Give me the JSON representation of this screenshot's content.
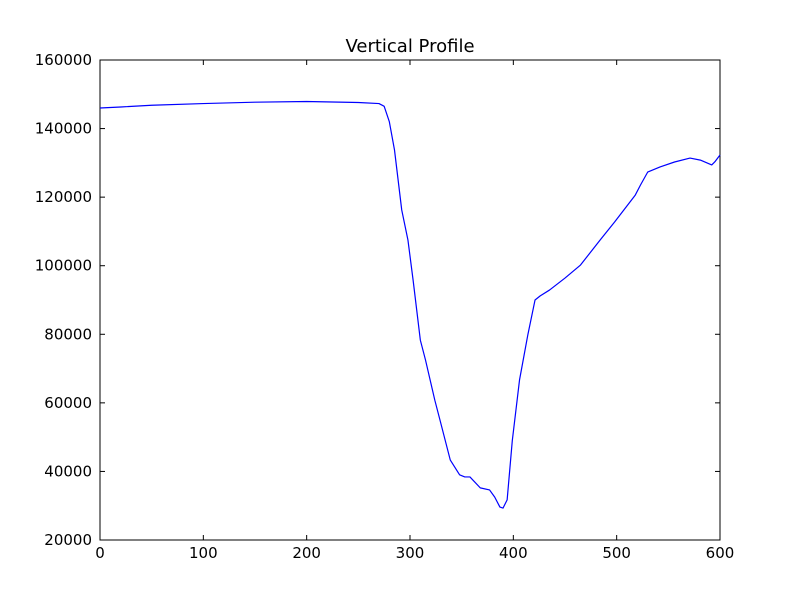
{
  "chart_data": {
    "type": "line",
    "title": "Vertical Profile",
    "x": [
      0,
      20,
      50,
      100,
      150,
      200,
      250,
      270,
      275,
      280,
      285,
      292,
      298,
      303,
      310,
      315,
      324,
      329,
      339,
      348,
      353,
      358,
      368,
      377,
      382,
      387,
      390,
      394,
      399,
      406,
      414,
      421,
      426,
      435,
      450,
      465,
      484,
      498,
      518,
      523,
      530,
      542,
      556,
      571,
      581,
      592,
      595,
      600
    ],
    "series": [
      {
        "color": "#0000ff",
        "values": [
          146000,
          146300,
          146800,
          147300,
          147700,
          147900,
          147600,
          147300,
          146500,
          142000,
          133750,
          116250,
          107500,
          95800,
          78300,
          72500,
          60800,
          55000,
          43300,
          39000,
          38400,
          38400,
          35200,
          34600,
          32500,
          29600,
          29300,
          31700,
          49000,
          66700,
          79800,
          90000,
          91200,
          92900,
          96400,
          100200,
          107500,
          112750,
          120600,
          123500,
          127300,
          128800,
          130250,
          131400,
          130800,
          129400,
          130300,
          132300
        ]
      }
    ],
    "xlim": [
      0,
      600
    ],
    "xticks": [
      0,
      100,
      200,
      300,
      400,
      500,
      600
    ],
    "ylim": [
      20000,
      160000
    ],
    "yticks": [
      20000,
      40000,
      60000,
      80000,
      100000,
      120000,
      140000,
      160000
    ]
  }
}
